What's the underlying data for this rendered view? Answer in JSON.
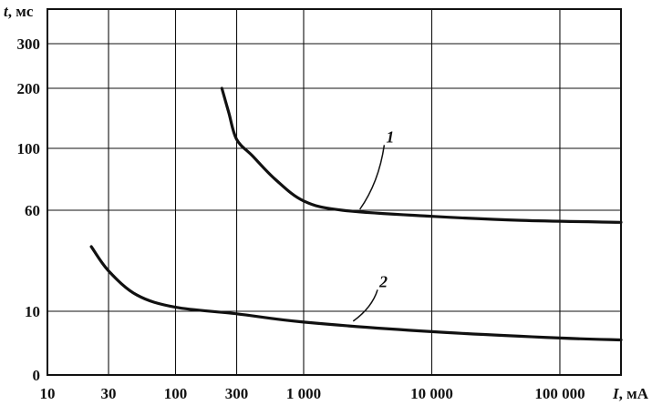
{
  "chart_data": {
    "type": "line",
    "title": "",
    "ylabel": "t, мс",
    "ylabel_var": "t",
    "ylabel_unit": ", мс",
    "xlabel": "I, мА",
    "xlabel_var": "I",
    "xlabel_unit": ", мА",
    "x_scale": "log",
    "xlim": [
      10,
      300000
    ],
    "x_ticks": [
      {
        "value": 10,
        "label": "10"
      },
      {
        "value": 30,
        "label": "30"
      },
      {
        "value": 100,
        "label": "100"
      },
      {
        "value": 300,
        "label": "300"
      },
      {
        "value": 1000,
        "label": "1 000"
      },
      {
        "value": 10000,
        "label": "10 000"
      },
      {
        "value": 100000,
        "label": "100 000"
      }
    ],
    "y_ticks": [
      {
        "value": 0,
        "label": "0"
      },
      {
        "value": 10,
        "label": "10"
      },
      {
        "value": 60,
        "label": "60"
      },
      {
        "value": 100,
        "label": "100"
      },
      {
        "value": 200,
        "label": "200"
      },
      {
        "value": 300,
        "label": "300"
      }
    ],
    "grid": true,
    "series": [
      {
        "name": "1",
        "label_at": {
          "x": 4400,
          "y": 110
        },
        "points": [
          {
            "x": 230,
            "y": 200
          },
          {
            "x": 260,
            "y": 160
          },
          {
            "x": 300,
            "y": 115
          },
          {
            "x": 400,
            "y": 95
          },
          {
            "x": 600,
            "y": 80
          },
          {
            "x": 1000,
            "y": 66
          },
          {
            "x": 2000,
            "y": 60
          },
          {
            "x": 10000,
            "y": 57
          },
          {
            "x": 50000,
            "y": 55
          },
          {
            "x": 300000,
            "y": 54
          }
        ]
      },
      {
        "name": "2",
        "label_at": {
          "x": 3900,
          "y": 22
        },
        "points": [
          {
            "x": 22,
            "y": 42
          },
          {
            "x": 30,
            "y": 30
          },
          {
            "x": 50,
            "y": 18
          },
          {
            "x": 100,
            "y": 12
          },
          {
            "x": 300,
            "y": 9.6
          },
          {
            "x": 1000,
            "y": 8.3
          },
          {
            "x": 10000,
            "y": 6.8
          },
          {
            "x": 100000,
            "y": 5.8
          },
          {
            "x": 300000,
            "y": 5.5
          }
        ]
      }
    ]
  }
}
